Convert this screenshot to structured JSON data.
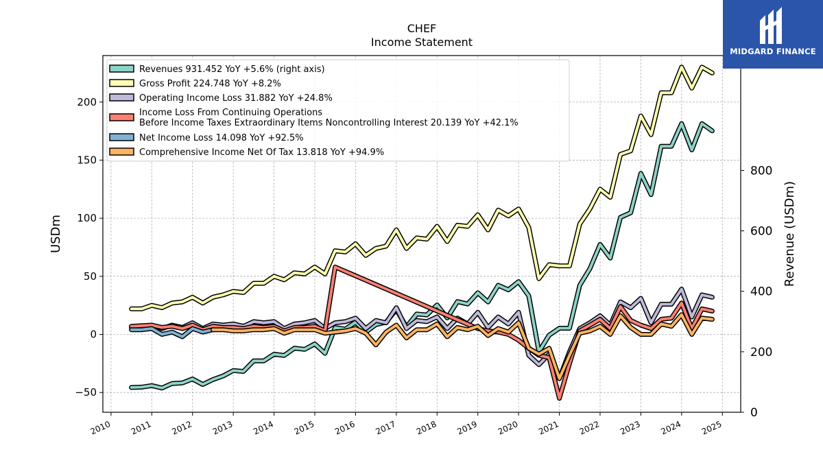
{
  "chart_data": {
    "type": "line",
    "title": "CHEF",
    "subtitle": "Income Statement",
    "ylabel": "USDm",
    "y2label": "Revenue (USDm)",
    "ylim": [
      -67,
      240
    ],
    "y2lim": [
      0,
      1180
    ],
    "xlim": [
      2009.8,
      2025.45
    ],
    "yticks": [
      -50,
      0,
      50,
      100,
      150,
      200
    ],
    "y2ticks": [
      0,
      200,
      400,
      600,
      800
    ],
    "xticks": [
      "2010",
      "2011",
      "2012",
      "2013",
      "2014",
      "2015",
      "2016",
      "2017",
      "2018",
      "2019",
      "2020",
      "2021",
      "2022",
      "2023",
      "2024",
      "2025"
    ],
    "grid": true,
    "legend_position": "upper-left",
    "series": [
      {
        "name": "Revenues",
        "legend": "Revenues  931.452 YoY +5.6% (right axis)",
        "axis": "right",
        "color": "#8dd3c7",
        "x": [
          2010.5,
          2010.75,
          2011.0,
          2011.25,
          2011.5,
          2011.75,
          2012.0,
          2012.25,
          2012.5,
          2012.75,
          2013.0,
          2013.25,
          2013.5,
          2013.75,
          2014.0,
          2014.25,
          2014.5,
          2014.75,
          2015.0,
          2015.25,
          2015.5,
          2015.75,
          2016.0,
          2016.25,
          2016.5,
          2016.75,
          2017.0,
          2017.25,
          2017.5,
          2017.75,
          2018.0,
          2018.25,
          2018.5,
          2018.75,
          2019.0,
          2019.25,
          2019.5,
          2019.75,
          2020.0,
          2020.25,
          2020.5,
          2020.75,
          2021.0,
          2021.25,
          2021.5,
          2021.75,
          2022.0,
          2022.25,
          2022.5,
          2022.75,
          2023.0,
          2023.25,
          2023.5,
          2023.75,
          2024.0,
          2024.25,
          2024.5,
          2024.75
        ],
        "values": [
          82,
          83,
          88,
          80,
          95,
          97,
          110,
          92,
          108,
          120,
          138,
          135,
          170,
          170,
          192,
          188,
          212,
          208,
          226,
          195,
          280,
          275,
          298,
          265,
          290,
          298,
          340,
          282,
          325,
          322,
          355,
          312,
          366,
          358,
          395,
          365,
          420,
          405,
          432,
          385,
          200,
          255,
          278,
          278,
          420,
          475,
          555,
          510,
          645,
          660,
          790,
          720,
          880,
          880,
          955,
          868,
          955,
          931
        ]
      },
      {
        "name": "Gross Profit",
        "legend": "Gross Profit  224.748 YoY +8.2%",
        "axis": "left",
        "color": "#ffffb3",
        "x": [
          2010.5,
          2010.75,
          2011.0,
          2011.25,
          2011.5,
          2011.75,
          2012.0,
          2012.25,
          2012.5,
          2012.75,
          2013.0,
          2013.25,
          2013.5,
          2013.75,
          2014.0,
          2014.25,
          2014.5,
          2014.75,
          2015.0,
          2015.25,
          2015.5,
          2015.75,
          2016.0,
          2016.25,
          2016.5,
          2016.75,
          2017.0,
          2017.25,
          2017.5,
          2017.75,
          2018.0,
          2018.25,
          2018.5,
          2018.75,
          2019.0,
          2019.25,
          2019.5,
          2019.75,
          2020.0,
          2020.25,
          2020.5,
          2020.75,
          2021.0,
          2021.25,
          2021.5,
          2021.75,
          2022.0,
          2022.25,
          2022.5,
          2022.75,
          2023.0,
          2023.25,
          2023.5,
          2023.75,
          2024.0,
          2024.25,
          2024.5,
          2024.75
        ],
        "values": [
          22,
          22,
          25,
          23,
          27,
          28,
          32,
          27,
          32,
          34,
          37,
          36,
          44,
          44,
          50,
          47,
          53,
          52,
          58,
          52,
          72,
          71,
          78,
          68,
          74,
          76,
          90,
          74,
          83,
          82,
          93,
          80,
          94,
          93,
          103,
          90,
          107,
          102,
          108,
          92,
          48,
          60,
          59,
          59,
          95,
          108,
          125,
          118,
          155,
          158,
          188,
          172,
          208,
          208,
          230,
          212,
          230,
          225
        ]
      },
      {
        "name": "Operating Income Loss",
        "legend": "Operating Income Loss  31.882 YoY +24.8%",
        "axis": "left",
        "color": "#bebada",
        "x": [
          2010.5,
          2010.75,
          2011.0,
          2011.25,
          2011.5,
          2011.75,
          2012.0,
          2012.25,
          2012.5,
          2012.75,
          2013.0,
          2013.25,
          2013.5,
          2013.75,
          2014.0,
          2014.25,
          2014.5,
          2014.75,
          2015.0,
          2015.25,
          2015.5,
          2015.75,
          2016.0,
          2016.25,
          2016.5,
          2016.75,
          2017.0,
          2017.25,
          2017.5,
          2017.75,
          2018.0,
          2018.25,
          2018.5,
          2018.75,
          2019.0,
          2019.25,
          2019.5,
          2019.75,
          2020.0,
          2020.25,
          2020.5,
          2020.75,
          2021.0,
          2021.25,
          2021.5,
          2021.75,
          2022.0,
          2022.25,
          2022.5,
          2022.75,
          2023.0,
          2023.25,
          2023.5,
          2023.75,
          2024.0,
          2024.25,
          2024.5,
          2024.75
        ],
        "values": [
          6,
          6,
          8,
          5,
          8,
          6,
          10,
          5,
          9,
          8,
          9,
          7,
          11,
          10,
          11,
          5,
          9,
          10,
          12,
          5,
          10,
          11,
          14,
          5,
          12,
          10,
          23,
          5,
          12,
          11,
          15,
          5,
          14,
          9,
          19,
          6,
          15,
          9,
          19,
          -18,
          -26,
          -17,
          -38,
          -15,
          5,
          10,
          16,
          8,
          28,
          23,
          31,
          10,
          26,
          26,
          39,
          15,
          34,
          32
        ]
      },
      {
        "name": "Income Loss From Continuing Operations Before Income Taxes Extraordinary Items Noncontrolling Interest",
        "legend": "Income Loss From Continuing Operations\nBefore Income Taxes Extraordinary Items Noncontrolling Interest  20.139 YoY +42.1%",
        "axis": "left",
        "color": "#fb8072",
        "x": [
          2010.5,
          2011.0,
          2011.25,
          2011.5,
          2011.75,
          2012.0,
          2012.25,
          2012.5,
          2012.75,
          2013.0,
          2013.25,
          2013.5,
          2013.75,
          2014.0,
          2014.25,
          2014.5,
          2014.75,
          2015.0,
          2015.25,
          2015.5,
          2019.0,
          2019.25,
          2019.5,
          2019.75,
          2020.0,
          2020.25,
          2020.5,
          2020.75,
          2021.0,
          2021.25,
          2021.5,
          2021.75,
          2022.0,
          2022.25,
          2022.5,
          2022.75,
          2023.0,
          2023.25,
          2023.5,
          2023.75,
          2024.0,
          2024.25,
          2024.5,
          2024.75
        ],
        "values": [
          7,
          8,
          6,
          7,
          5,
          8,
          4,
          7,
          6,
          6,
          5,
          7,
          6,
          7,
          3,
          6,
          6,
          7,
          3,
          58,
          5,
          3,
          2,
          0,
          -5,
          -12,
          -18,
          -20,
          -55,
          -25,
          3,
          8,
          13,
          5,
          24,
          12,
          8,
          5,
          13,
          14,
          27,
          5,
          22,
          20
        ]
      },
      {
        "name": "Net Income Loss",
        "legend": "Net Income Loss  14.098 YoY +92.5%",
        "axis": "left",
        "color": "#80b1d3",
        "x": [
          2010.5,
          2010.75,
          2011.0,
          2011.25,
          2011.5,
          2011.75,
          2012.0,
          2012.25,
          2012.5
        ],
        "values": [
          4,
          4,
          5,
          0,
          2,
          -2,
          5,
          2,
          4
        ]
      },
      {
        "name": "Comprehensive Income Net Of Tax",
        "legend": "Comprehensive Income Net Of Tax  13.818 YoY +94.9%",
        "axis": "left",
        "color": "#fdb462",
        "x": [
          2012.5,
          2012.75,
          2013.0,
          2013.25,
          2013.5,
          2013.75,
          2014.0,
          2014.25,
          2014.5,
          2014.75,
          2015.0,
          2015.25,
          2015.5,
          2015.75,
          2016.0,
          2016.25,
          2016.5,
          2016.75,
          2017.0,
          2017.25,
          2017.5,
          2017.75,
          2018.0,
          2018.25,
          2018.5,
          2018.75,
          2019.0,
          2019.25,
          2019.5,
          2019.75,
          2020.0,
          2020.25,
          2020.5,
          2020.75,
          2021.0,
          2021.25,
          2021.5,
          2021.75,
          2022.0,
          2022.25,
          2022.5,
          2022.75,
          2023.0,
          2023.25,
          2023.5,
          2023.75,
          2024.0,
          2024.25,
          2024.5,
          2024.75
        ],
        "values": [
          4,
          4,
          3,
          3,
          4,
          4,
          5,
          1,
          4,
          4,
          4,
          1,
          2,
          3,
          5,
          1,
          -9,
          2,
          8,
          -3,
          4,
          4,
          9,
          -2,
          6,
          4,
          7,
          -1,
          5,
          2,
          10,
          -12,
          -17,
          -12,
          -38,
          -18,
          1,
          3,
          7,
          0,
          16,
          6,
          0,
          0,
          9,
          7,
          17,
          0,
          14,
          13
        ]
      }
    ]
  },
  "logo": {
    "text": "MIDGARD FINANCE"
  }
}
